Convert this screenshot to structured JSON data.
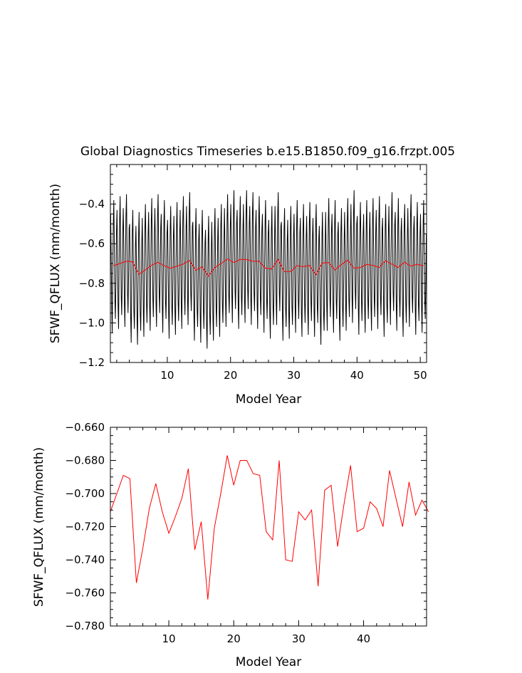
{
  "title": "Global Diagnostics Timeseries b.e15.B1850.f09_g16.frzpt.005",
  "chart_data": [
    {
      "type": "line",
      "xlabel": "Model Year",
      "ylabel": "SFWF_QFLUX (mm/month)",
      "xlim": [
        1,
        51
      ],
      "ylim": [
        -1.2,
        -0.2
      ],
      "x_ticks": [
        10,
        20,
        30,
        40,
        50
      ],
      "x_tick_labels": [
        "10",
        "20",
        "30",
        "40",
        "50"
      ],
      "y_ticks": [
        -1.2,
        -1.0,
        -0.8,
        -0.6,
        -0.4
      ],
      "y_tick_labels": [
        "−1.2",
        "−1.0",
        "−0.8",
        "−0.6",
        "−0.4"
      ],
      "grid": false,
      "series": [
        {
          "color": "#000000",
          "x_start": 1.0417,
          "x_step": 0.083333,
          "seasonal_cycle": [
            -0.45,
            -0.65,
            -0.92,
            -1.05,
            -0.75,
            -0.5,
            -0.38,
            -0.62,
            -0.88,
            -0.98,
            -0.8,
            -0.55
          ],
          "annual_offsets": [
            0.0,
            0.02,
            0.03,
            -0.05,
            -0.06,
            -0.02,
            0.01,
            0.03,
            0.0,
            -0.03,
            -0.01,
            0.02,
            0.04,
            -0.04,
            -0.05,
            -0.08,
            -0.04,
            -0.02,
            0.03,
            0.05,
            0.02,
            0.05,
            0.04,
            0.02,
            0.0,
            -0.03,
            0.04,
            -0.04,
            -0.03,
            0.0,
            -0.02,
            -0.01,
            -0.02,
            -0.06,
            0.01,
            0.0,
            -0.04,
            0.01,
            0.05,
            -0.01,
            0.0,
            0.01,
            0.02,
            -0.02,
            0.04,
            0.01,
            -0.02,
            0.03,
            -0.01,
            0.0
          ]
        },
        {
          "color": "#ff0000",
          "x": [
            1.5,
            2.5,
            3.5,
            4.5,
            5.5,
            6.5,
            7.5,
            8.5,
            9.5,
            10.5,
            11.5,
            12.5,
            13.5,
            14.5,
            15.5,
            16.5,
            17.5,
            18.5,
            19.5,
            20.5,
            21.5,
            22.5,
            23.5,
            24.5,
            25.5,
            26.5,
            27.5,
            28.5,
            29.5,
            30.5,
            31.5,
            32.5,
            33.5,
            34.5,
            35.5,
            36.5,
            37.5,
            38.5,
            39.5,
            40.5,
            41.5,
            42.5,
            43.5,
            44.5,
            45.5,
            46.5,
            47.5,
            48.5,
            49.5,
            50.5
          ],
          "y": [
            -0.711,
            -0.7,
            -0.689,
            -0.691,
            -0.754,
            -0.733,
            -0.709,
            -0.694,
            -0.711,
            -0.724,
            -0.714,
            -0.703,
            -0.685,
            -0.734,
            -0.717,
            -0.764,
            -0.721,
            -0.7,
            -0.677,
            -0.695,
            -0.68,
            -0.68,
            -0.688,
            -0.689,
            -0.723,
            -0.728,
            -0.68,
            -0.74,
            -0.741,
            -0.711,
            -0.716,
            -0.71,
            -0.756,
            -0.698,
            -0.695,
            -0.732,
            -0.706,
            -0.683,
            -0.723,
            -0.721,
            -0.705,
            -0.709,
            -0.72,
            -0.686,
            -0.703,
            -0.72,
            -0.693,
            -0.713,
            -0.704,
            -0.711
          ]
        }
      ]
    },
    {
      "type": "line",
      "xlabel": "Model Year",
      "ylabel": "SFWF_QFLUX (mm/month)",
      "xlim": [
        1,
        49.7
      ],
      "ylim": [
        -0.78,
        -0.66
      ],
      "x_ticks": [
        10,
        20,
        30,
        40
      ],
      "x_tick_labels": [
        "10",
        "20",
        "30",
        "40"
      ],
      "y_ticks": [
        -0.78,
        -0.76,
        -0.74,
        -0.72,
        -0.7,
        -0.68,
        -0.66
      ],
      "y_tick_labels": [
        "−0.780",
        "−0.760",
        "−0.740",
        "−0.720",
        "−0.700",
        "−0.680",
        "−0.660"
      ],
      "grid": false,
      "series": [
        {
          "color": "#ff0000",
          "x": [
            1,
            2,
            3,
            4,
            5,
            6,
            7,
            8,
            9,
            10,
            11,
            12,
            13,
            14,
            15,
            16,
            17,
            18,
            19,
            20,
            21,
            22,
            23,
            24,
            25,
            26,
            27,
            28,
            29,
            30,
            31,
            32,
            33,
            34,
            35,
            36,
            37,
            38,
            39,
            40,
            41,
            42,
            43,
            44,
            45,
            46,
            47,
            48,
            49,
            50
          ],
          "y": [
            -0.711,
            -0.7,
            -0.689,
            -0.691,
            -0.754,
            -0.733,
            -0.709,
            -0.694,
            -0.711,
            -0.724,
            -0.714,
            -0.703,
            -0.685,
            -0.734,
            -0.717,
            -0.764,
            -0.721,
            -0.7,
            -0.677,
            -0.695,
            -0.68,
            -0.68,
            -0.688,
            -0.689,
            -0.723,
            -0.728,
            -0.68,
            -0.74,
            -0.741,
            -0.711,
            -0.716,
            -0.71,
            -0.756,
            -0.698,
            -0.695,
            -0.732,
            -0.706,
            -0.683,
            -0.723,
            -0.721,
            -0.705,
            -0.709,
            -0.72,
            -0.686,
            -0.703,
            -0.72,
            -0.693,
            -0.713,
            -0.704,
            -0.711
          ]
        }
      ]
    }
  ]
}
